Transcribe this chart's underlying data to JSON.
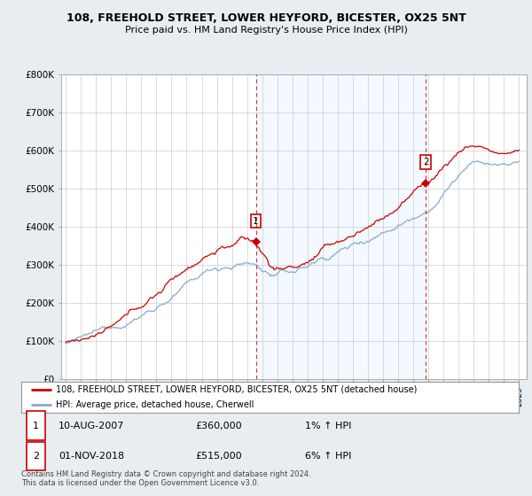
{
  "title": "108, FREEHOLD STREET, LOWER HEYFORD, BICESTER, OX25 5NT",
  "subtitle": "Price paid vs. HM Land Registry's House Price Index (HPI)",
  "legend_line1": "108, FREEHOLD STREET, LOWER HEYFORD, BICESTER, OX25 5NT (detached house)",
  "legend_line2": "HPI: Average price, detached house, Cherwell",
  "annotation1_date": "10-AUG-2007",
  "annotation1_price": "£360,000",
  "annotation1_hpi": "1% ↑ HPI",
  "annotation2_date": "01-NOV-2018",
  "annotation2_price": "£515,000",
  "annotation2_hpi": "6% ↑ HPI",
  "footer": "Contains HM Land Registry data © Crown copyright and database right 2024.\nThis data is licensed under the Open Government Licence v3.0.",
  "property_color": "#cc0000",
  "hpi_color": "#88aacc",
  "shade_color": "#ddeeff",
  "background_color": "#e8edf2",
  "plot_bg_color": "#ffffff",
  "ylim": [
    0,
    800000
  ],
  "yticks": [
    0,
    100000,
    200000,
    300000,
    400000,
    500000,
    600000,
    700000,
    800000
  ],
  "ytick_labels": [
    "£0",
    "£100K",
    "£200K",
    "£300K",
    "£400K",
    "£500K",
    "£600K",
    "£700K",
    "£800K"
  ],
  "sale1_x": 2007.58,
  "sale1_y": 360000,
  "sale2_x": 2018.83,
  "sale2_y": 515000,
  "xmin": 1995,
  "xmax": 2025
}
